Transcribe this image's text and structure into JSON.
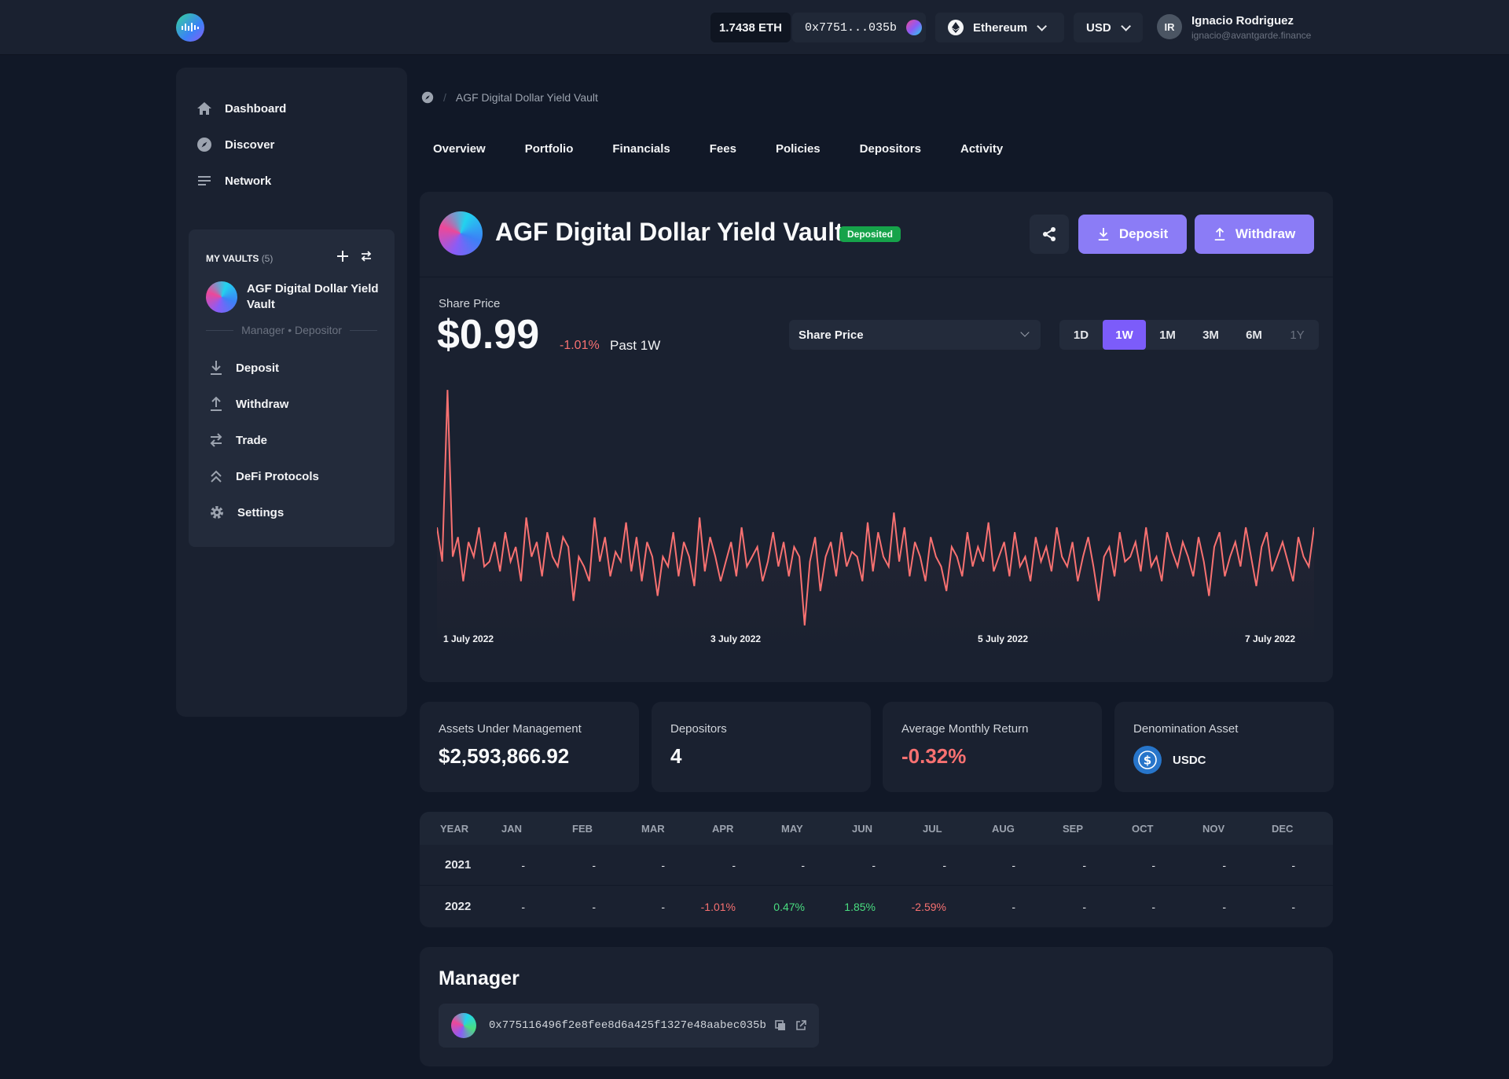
{
  "topbar": {
    "eth_balance": "1.7438 ETH",
    "wallet_short": "0x7751...035b",
    "network": "Ethereum",
    "currency": "USD",
    "user_initials": "IR",
    "user_name": "Ignacio Rodriguez",
    "user_email": "ignacio@avantgarde.finance"
  },
  "sidebar": {
    "nav": [
      {
        "label": "Dashboard",
        "icon": "home-icon"
      },
      {
        "label": "Discover",
        "icon": "compass-icon"
      },
      {
        "label": "Network",
        "icon": "list-icon"
      }
    ],
    "my_vaults_label": "MY VAULTS",
    "my_vaults_count": "(5)",
    "vault_name": "AGF Digital Dollar Yield Vault",
    "vault_roles": "Manager • Depositor",
    "vault_actions": [
      {
        "label": "Deposit",
        "icon": "download-icon"
      },
      {
        "label": "Withdraw",
        "icon": "upload-icon"
      },
      {
        "label": "Trade",
        "icon": "swap-icon"
      },
      {
        "label": "DeFi Protocols",
        "icon": "chevrons-up-icon"
      },
      {
        "label": "Settings",
        "icon": "gear-icon"
      }
    ]
  },
  "breadcrumb": {
    "current": "AGF Digital Dollar Yield Vault"
  },
  "tabs": [
    "Overview",
    "Portfolio",
    "Financials",
    "Fees",
    "Policies",
    "Depositors",
    "Activity"
  ],
  "vault": {
    "title": "AGF Digital Dollar Yield Vault",
    "badge": "Deposited",
    "deposit_label": "Deposit",
    "withdraw_label": "Withdraw",
    "share_price_label": "Share Price",
    "share_price": "$0.99",
    "change": "-1.01%",
    "period": "Past 1W",
    "metric_select": "Share Price",
    "ranges": [
      "1D",
      "1W",
      "1M",
      "3M",
      "6M",
      "1Y"
    ],
    "active_range": "1W",
    "x_labels": [
      "1 July 2022",
      "3 July 2022",
      "5 July 2022",
      "7 July 2022"
    ]
  },
  "chart_data": {
    "type": "line",
    "series_color": "#f87171",
    "x_labels": [
      "1 July 2022",
      "3 July 2022",
      "5 July 2022",
      "7 July 2022"
    ],
    "series": [
      {
        "values": [
          0.42,
          0.28,
          0.98,
          0.3,
          0.38,
          0.2,
          0.36,
          0.3,
          0.42,
          0.26,
          0.28,
          0.36,
          0.24,
          0.4,
          0.28,
          0.34,
          0.2,
          0.46,
          0.3,
          0.36,
          0.22,
          0.4,
          0.3,
          0.26,
          0.38,
          0.34,
          0.12,
          0.3,
          0.26,
          0.2,
          0.46,
          0.28,
          0.38,
          0.22,
          0.32,
          0.28,
          0.44,
          0.24,
          0.38,
          0.2,
          0.36,
          0.3,
          0.14,
          0.3,
          0.26,
          0.4,
          0.22,
          0.36,
          0.3,
          0.18,
          0.46,
          0.24,
          0.38,
          0.3,
          0.2,
          0.28,
          0.36,
          0.22,
          0.42,
          0.26,
          0.3,
          0.34,
          0.2,
          0.28,
          0.4,
          0.26,
          0.36,
          0.22,
          0.34,
          0.3,
          0.02,
          0.28,
          0.38,
          0.16,
          0.3,
          0.36,
          0.22,
          0.4,
          0.26,
          0.32,
          0.3,
          0.2,
          0.44,
          0.24,
          0.4,
          0.3,
          0.26,
          0.48,
          0.28,
          0.42,
          0.22,
          0.36,
          0.3,
          0.2,
          0.38,
          0.3,
          0.26,
          0.16,
          0.34,
          0.3,
          0.22,
          0.4,
          0.26,
          0.34,
          0.28,
          0.44,
          0.24,
          0.3,
          0.36,
          0.22,
          0.4,
          0.26,
          0.3,
          0.2,
          0.38,
          0.28,
          0.34,
          0.24,
          0.42,
          0.3,
          0.26,
          0.36,
          0.2,
          0.3,
          0.38,
          0.26,
          0.12,
          0.3,
          0.34,
          0.22,
          0.4,
          0.28,
          0.3,
          0.36,
          0.24,
          0.42,
          0.26,
          0.3,
          0.2,
          0.4,
          0.32,
          0.26,
          0.36,
          0.3,
          0.22,
          0.38,
          0.28,
          0.14,
          0.34,
          0.4,
          0.22,
          0.3,
          0.36,
          0.26,
          0.42,
          0.3,
          0.18,
          0.34,
          0.4,
          0.24,
          0.3,
          0.36,
          0.28,
          0.2,
          0.38,
          0.3,
          0.26,
          0.42
        ]
      }
    ]
  },
  "stats": [
    {
      "label": "Assets Under Management",
      "value": "$2,593,866.92"
    },
    {
      "label": "Depositors",
      "value": "4"
    },
    {
      "label": "Average Monthly Return",
      "value": "-0.32%"
    },
    {
      "label": "Denomination Asset",
      "value": "USDC"
    }
  ],
  "returns": {
    "headers": [
      "YEAR",
      "JAN",
      "FEB",
      "MAR",
      "APR",
      "MAY",
      "JUN",
      "JUL",
      "AUG",
      "SEP",
      "OCT",
      "NOV",
      "DEC"
    ],
    "rows": [
      {
        "year": "2021",
        "values": [
          "-",
          "-",
          "-",
          "-",
          "-",
          "-",
          "-",
          "-",
          "-",
          "-",
          "-",
          "-"
        ]
      },
      {
        "year": "2022",
        "values": [
          "-",
          "-",
          "-",
          "-1.01%",
          "0.47%",
          "1.85%",
          "-2.59%",
          "-",
          "-",
          "-",
          "-",
          "-"
        ]
      }
    ]
  },
  "manager": {
    "title": "Manager",
    "address": "0x775116496f2e8fee8d6a425f1327e48aabec035b"
  },
  "colors": {
    "accent": "#8b7cf6",
    "negative": "#f87171",
    "positive": "#4ade80",
    "badge": "#16a34a"
  }
}
